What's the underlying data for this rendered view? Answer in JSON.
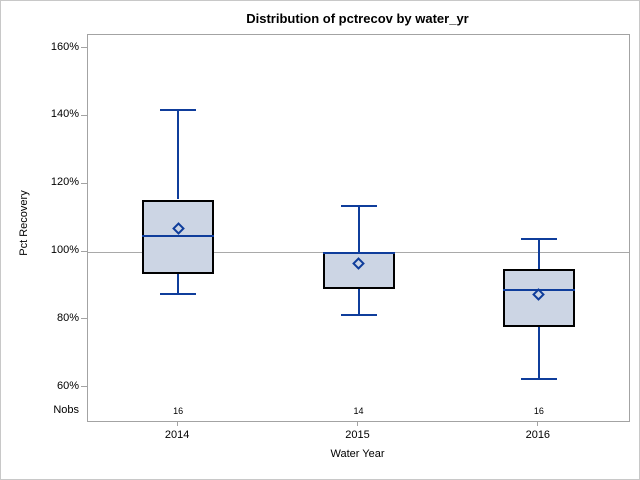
{
  "chart_data": {
    "type": "box",
    "title": "Distribution of pctrecov by water_yr",
    "xlabel": "Water Year",
    "ylabel": "Pct Recovery",
    "nobs_label": "Nobs",
    "ylim": [
      50.2,
      164.0
    ],
    "y_ticks": [
      160,
      140,
      120,
      100,
      80,
      60
    ],
    "y_tick_suffix": "%",
    "reference_line_y": 100,
    "grid": false,
    "legend": "none",
    "categories": [
      "2014",
      "2015",
      "2016"
    ],
    "boxes": [
      {
        "category": "2014",
        "whisker_low": 87.5,
        "q1": 93.5,
        "median": 105,
        "q3": 115.5,
        "whisker_high": 142,
        "mean": 107,
        "nobs": "16"
      },
      {
        "category": "2015",
        "whisker_low": 81.5,
        "q1": 89,
        "median": 100,
        "q3": 100,
        "whisker_high": 113.5,
        "mean": 96.5,
        "nobs": "14"
      },
      {
        "category": "2016",
        "whisker_low": 62.5,
        "q1": 78,
        "median": 89,
        "q3": 95,
        "whisker_high": 104,
        "mean": 87.5,
        "nobs": "16"
      }
    ],
    "colors": {
      "box_fill": "#ccd5e4",
      "box_border": "#000000",
      "line_navy": "#0f3d9b",
      "reference_line": "#a9a9a9",
      "frame_border": "#a3a3a3",
      "axis_text": "#000000"
    }
  }
}
